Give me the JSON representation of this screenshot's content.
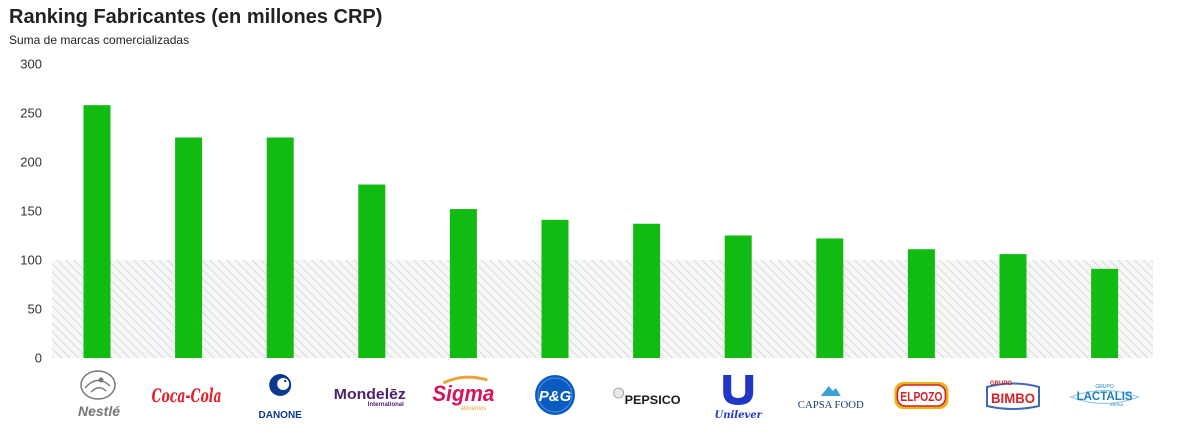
{
  "chart_data": {
    "type": "bar",
    "title": "Ranking Fabricantes (en millones CRP)",
    "subtitle": "Suma de marcas comercializadas",
    "categories": [
      "Nestlé",
      "Coca-Cola",
      "Danone",
      "Mondelēz International",
      "Sigma Alimentos",
      "P&G",
      "PepsiCo",
      "Unilever",
      "Capsa Food",
      "ElPozo",
      "Grupo Bimbo",
      "Grupo Lactalis Iberia"
    ],
    "values": [
      258,
      225,
      225,
      177,
      152,
      141,
      137,
      125,
      122,
      111,
      106,
      91
    ],
    "ylim": [
      0,
      300
    ],
    "yticks": [
      0,
      50,
      100,
      150,
      200,
      250,
      300
    ],
    "bar_color": "#11bb11",
    "reference_band": {
      "from": 0,
      "to": 100,
      "style": "hatched",
      "color": "#cccccc"
    },
    "grid": false,
    "legend": "none"
  },
  "brand_logos": [
    {
      "text": "Nestlé",
      "color": "#777777",
      "icon": "nest-icon"
    },
    {
      "text": "Coca-Cola",
      "color": "#e61d2b",
      "icon": "coca-cola-script"
    },
    {
      "text": "DANONE",
      "color": "#0b3a8c",
      "icon": "danone-child-icon"
    },
    {
      "text": "Mondelēz",
      "sub": "International",
      "color": "#4f2170"
    },
    {
      "text": "Sigma",
      "sub": "alimentos",
      "color": "#d4145a",
      "sub_color": "#e8a33d",
      "icon": "sigma-swoosh"
    },
    {
      "text": "P&G",
      "color": "#0a5cc2",
      "icon": "pg-circle"
    },
    {
      "text": "PEPSICO",
      "color": "#1a1a1a",
      "icon": "pepsico-globe"
    },
    {
      "text": "Unilever",
      "color": "#1f36c7",
      "icon": "unilever-u-icon"
    },
    {
      "text": "CAPSA FOOD",
      "color": "#1a3e73",
      "icon": "capsa-mountain"
    },
    {
      "text": "ELPOZO",
      "color": "#d2232a",
      "frame_color": "#e8b417"
    },
    {
      "text": "BIMBO",
      "small": "GRUPO",
      "color": "#d2232a"
    },
    {
      "text": "LACTALIS",
      "small": "GRUPO",
      "sub": "IBERIA",
      "color": "#1b7fc4"
    }
  ]
}
